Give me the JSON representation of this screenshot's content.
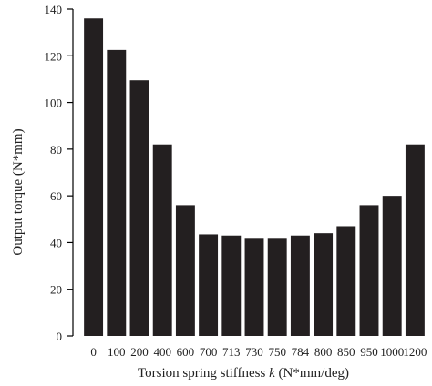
{
  "chart_data": {
    "type": "bar",
    "title": "",
    "xlabel": {
      "before": "Torsion spring stiffness ",
      "italic": "k",
      "after": " (N*mm/deg)"
    },
    "ylabel": "Output torque (N*mm)",
    "categories": [
      "0",
      "100",
      "200",
      "400",
      "600",
      "700",
      "713",
      "730",
      "750",
      "784",
      "800",
      "850",
      "950",
      "1000",
      "1200"
    ],
    "values": [
      136,
      122.5,
      109.5,
      82,
      56,
      43.5,
      43,
      42,
      42,
      43,
      44,
      47,
      56,
      60,
      82
    ],
    "ylim": [
      0,
      140
    ],
    "yticks": [
      0,
      20,
      40,
      60,
      80,
      100,
      120,
      140
    ],
    "grid": false,
    "colors": {
      "bar": "#231f20",
      "axis": "#000000"
    }
  }
}
